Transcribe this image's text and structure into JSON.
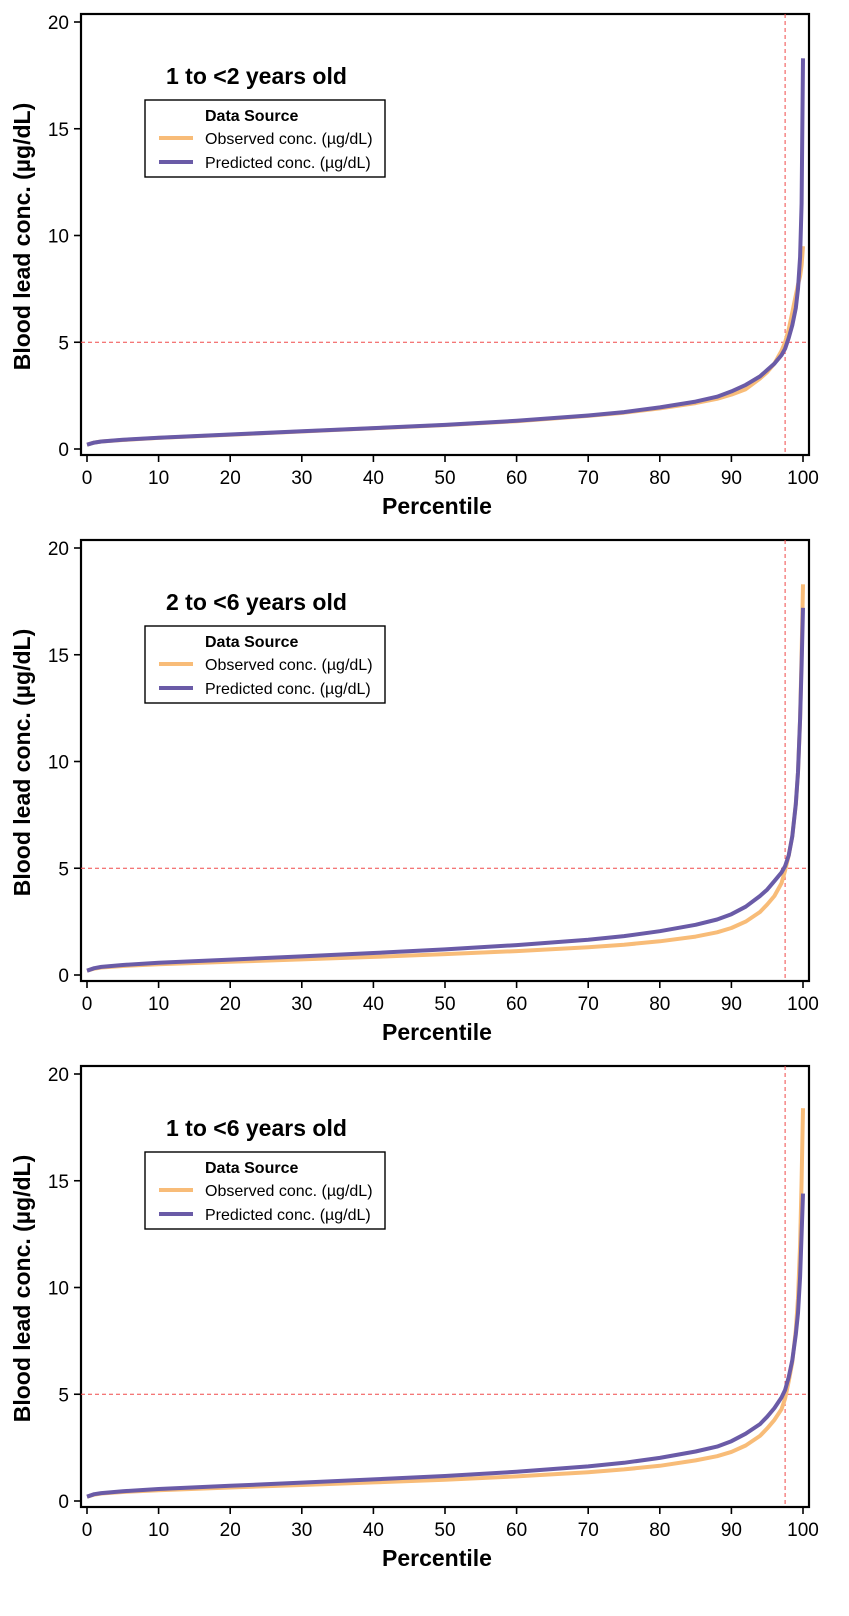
{
  "colors": {
    "observed": "#F8BC78",
    "predicted": "#6A5BA7",
    "reference": "#F04A4A"
  },
  "chart_data": [
    {
      "type": "line",
      "title": "1 to <2 years old",
      "xlabel": "Percentile",
      "ylabel": "Blood lead conc. (µg/dL)",
      "xlim": [
        0,
        100
      ],
      "ylim": [
        0,
        20
      ],
      "xticks": [
        0,
        10,
        20,
        30,
        40,
        50,
        60,
        70,
        80,
        90,
        100
      ],
      "yticks": [
        0,
        5,
        10,
        15,
        20
      ],
      "grid": false,
      "legend": {
        "title": "Data Source",
        "placement": "top-left",
        "entries": [
          "Observed conc. (µg/dL)",
          "Predicted conc. (µg/dL)"
        ]
      },
      "reference_lines": {
        "y": 5,
        "x": 97.5
      },
      "series": [
        {
          "name": "Observed conc. (µg/dL)",
          "x": [
            0,
            1,
            2,
            5,
            10,
            20,
            30,
            40,
            50,
            60,
            70,
            75,
            80,
            85,
            88,
            90,
            92,
            94,
            95,
            96,
            97,
            97.5,
            98,
            98.5,
            99,
            99.3,
            99.6,
            99.8,
            100
          ],
          "y": [
            0.2,
            0.3,
            0.35,
            0.42,
            0.52,
            0.67,
            0.82,
            0.97,
            1.12,
            1.3,
            1.55,
            1.7,
            1.9,
            2.15,
            2.35,
            2.55,
            2.8,
            3.3,
            3.6,
            4.0,
            4.6,
            5.0,
            5.6,
            6.4,
            7.2,
            7.7,
            8.1,
            8.6,
            9.5
          ]
        },
        {
          "name": "Predicted conc. (µg/dL)",
          "x": [
            0,
            1,
            2,
            5,
            10,
            20,
            30,
            40,
            50,
            60,
            70,
            75,
            80,
            85,
            88,
            90,
            92,
            94,
            95,
            96,
            97,
            97.5,
            98,
            98.5,
            99,
            99.3,
            99.6,
            99.8,
            100
          ],
          "y": [
            0.2,
            0.3,
            0.35,
            0.43,
            0.53,
            0.68,
            0.83,
            0.98,
            1.13,
            1.32,
            1.57,
            1.73,
            1.95,
            2.22,
            2.45,
            2.7,
            3.0,
            3.4,
            3.7,
            4.0,
            4.4,
            4.7,
            5.2,
            5.8,
            6.6,
            7.5,
            9.0,
            11.5,
            18.3
          ]
        }
      ]
    },
    {
      "type": "line",
      "title": "2 to <6 years old",
      "xlabel": "Percentile",
      "ylabel": "Blood lead conc. (µg/dL)",
      "xlim": [
        0,
        100
      ],
      "ylim": [
        0,
        20
      ],
      "xticks": [
        0,
        10,
        20,
        30,
        40,
        50,
        60,
        70,
        80,
        90,
        100
      ],
      "yticks": [
        0,
        5,
        10,
        15,
        20
      ],
      "grid": false,
      "legend": {
        "title": "Data Source",
        "placement": "top-left",
        "entries": [
          "Observed conc. (µg/dL)",
          "Predicted conc. (µg/dL)"
        ]
      },
      "reference_lines": {
        "y": 5,
        "x": 97.5
      },
      "series": [
        {
          "name": "Observed conc. (µg/dL)",
          "x": [
            0,
            1,
            2,
            5,
            10,
            20,
            30,
            40,
            50,
            60,
            70,
            75,
            80,
            85,
            88,
            90,
            92,
            94,
            95,
            96,
            97,
            97.5,
            98,
            98.5,
            99,
            99.3,
            99.6,
            99.8,
            100
          ],
          "y": [
            0.2,
            0.3,
            0.35,
            0.42,
            0.5,
            0.62,
            0.73,
            0.85,
            0.98,
            1.12,
            1.3,
            1.42,
            1.58,
            1.8,
            2.0,
            2.2,
            2.5,
            2.95,
            3.3,
            3.7,
            4.3,
            4.9,
            5.6,
            6.5,
            8.0,
            9.5,
            12.0,
            15.0,
            18.3
          ]
        },
        {
          "name": "Predicted conc. (µg/dL)",
          "x": [
            0,
            1,
            2,
            5,
            10,
            20,
            30,
            40,
            50,
            60,
            70,
            75,
            80,
            85,
            88,
            90,
            92,
            94,
            95,
            96,
            97,
            97.5,
            98,
            98.5,
            99,
            99.3,
            99.6,
            99.8,
            100
          ],
          "y": [
            0.2,
            0.32,
            0.38,
            0.47,
            0.57,
            0.72,
            0.87,
            1.03,
            1.2,
            1.4,
            1.65,
            1.82,
            2.05,
            2.35,
            2.6,
            2.85,
            3.2,
            3.7,
            4.0,
            4.4,
            4.8,
            5.1,
            5.6,
            6.5,
            8.0,
            9.5,
            12.0,
            14.5,
            17.2
          ]
        }
      ]
    },
    {
      "type": "line",
      "title": "1 to <6 years old",
      "xlabel": "Percentile",
      "ylabel": "Blood lead conc. (µg/dL)",
      "xlim": [
        0,
        100
      ],
      "ylim": [
        0,
        20
      ],
      "xticks": [
        0,
        10,
        20,
        30,
        40,
        50,
        60,
        70,
        80,
        90,
        100
      ],
      "yticks": [
        0,
        5,
        10,
        15,
        20
      ],
      "grid": false,
      "legend": {
        "title": "Data Source",
        "placement": "top-left",
        "entries": [
          "Observed conc. (µg/dL)",
          "Predicted conc. (µg/dL)"
        ]
      },
      "reference_lines": {
        "y": 5,
        "x": 97.5
      },
      "series": [
        {
          "name": "Observed conc. (µg/dL)",
          "x": [
            0,
            1,
            2,
            5,
            10,
            20,
            30,
            40,
            50,
            60,
            70,
            75,
            80,
            85,
            88,
            90,
            92,
            94,
            95,
            96,
            97,
            97.5,
            98,
            98.5,
            99,
            99.3,
            99.6,
            99.8,
            100
          ],
          "y": [
            0.2,
            0.3,
            0.35,
            0.42,
            0.5,
            0.63,
            0.75,
            0.87,
            1.0,
            1.15,
            1.35,
            1.48,
            1.65,
            1.9,
            2.1,
            2.3,
            2.6,
            3.05,
            3.4,
            3.8,
            4.3,
            4.8,
            5.6,
            6.5,
            8.0,
            9.5,
            12.0,
            15.0,
            18.4
          ]
        },
        {
          "name": "Predicted conc. (µg/dL)",
          "x": [
            0,
            1,
            2,
            5,
            10,
            20,
            30,
            40,
            50,
            60,
            70,
            75,
            80,
            85,
            88,
            90,
            92,
            94,
            95,
            96,
            97,
            97.5,
            98,
            98.5,
            99,
            99.3,
            99.6,
            99.8,
            100
          ],
          "y": [
            0.2,
            0.32,
            0.37,
            0.46,
            0.56,
            0.71,
            0.86,
            1.01,
            1.17,
            1.37,
            1.62,
            1.79,
            2.02,
            2.32,
            2.55,
            2.8,
            3.15,
            3.6,
            3.95,
            4.35,
            4.85,
            5.2,
            5.8,
            6.6,
            7.8,
            8.8,
            10.5,
            12.5,
            14.4
          ]
        }
      ]
    }
  ]
}
